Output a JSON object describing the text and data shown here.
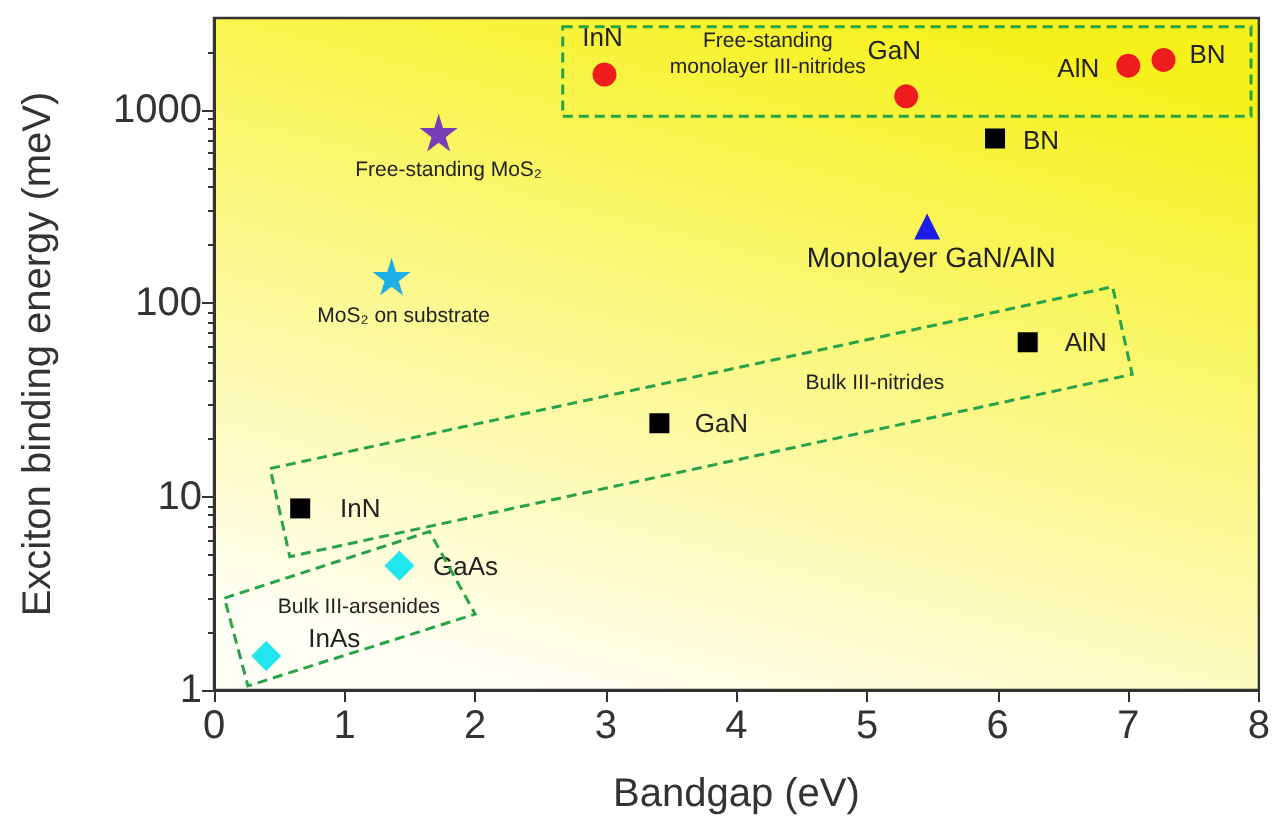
{
  "chart_data": {
    "type": "scatter",
    "xlabel": "Bandgap (eV)",
    "ylabel": "Exciton binding energy (meV)",
    "xlim": [
      0,
      8
    ],
    "xticks": [
      0,
      1,
      2,
      3,
      4,
      5,
      6,
      7,
      8
    ],
    "ylim": [
      1,
      3000
    ],
    "yticks": [
      1,
      10,
      100,
      1000
    ],
    "log": "y",
    "grid": false,
    "series": [
      {
        "color": "#ee1c1c",
        "marker": "circle",
        "x": [
          2.99,
          5.3,
          7.0,
          7.27
        ],
        "values": [
          1530,
          1180,
          1700,
          1820
        ]
      },
      {
        "color": "#000000",
        "marker": "square",
        "x": [
          0.66,
          3.41,
          5.98,
          6.23
        ],
        "values": [
          8.7,
          24,
          714,
          63
        ]
      },
      {
        "color": "#1c1ce6",
        "marker": "triangle",
        "x": [
          5.46
        ],
        "values": [
          250
        ]
      },
      {
        "color": "#7a3db8",
        "marker": "star",
        "x": [
          1.72
        ],
        "values": [
          767
        ]
      },
      {
        "color": "#1eaee8",
        "marker": "star",
        "x": [
          1.36
        ],
        "values": [
          138
        ]
      },
      {
        "color": "#22e6ee",
        "marker": "diamond",
        "x": [
          1.42,
          0.4
        ],
        "values": [
          4.4,
          1.5
        ]
      }
    ],
    "annotations": [
      {
        "text": "InN",
        "x": 2.99,
        "y": 1530
      },
      "Free-standing\nmonolayer III-nitrides",
      {
        "text": "GaN",
        "x": 5.3,
        "y": 1180
      },
      {
        "text": "AlN",
        "x": 7.0,
        "y": 1700
      },
      {
        "text": "BN",
        "x": 7.27,
        "y": 1820
      },
      {
        "text": "BN",
        "x": 5.98,
        "y": 714
      },
      {
        "text": "Monolayer GaN/AlN",
        "x": 5.46,
        "y": 250
      },
      {
        "text": "AlN",
        "x": 6.23,
        "y": 63
      },
      "Bulk III-nitrides",
      {
        "text": "GaN",
        "x": 3.41,
        "y": 24
      },
      {
        "text": "InN",
        "x": 0.66,
        "y": 8.7
      },
      {
        "text": "GaAs",
        "x": 1.42,
        "y": 4.4
      },
      "Bulk III-arsenides",
      {
        "text": "InAs",
        "x": 0.4,
        "y": 1.5
      },
      {
        "text": "Free-standing MoS₂",
        "x": 1.72,
        "y": 767
      },
      {
        "text": "MoS₂ on substrate",
        "x": 1.36,
        "y": 138
      }
    ]
  }
}
